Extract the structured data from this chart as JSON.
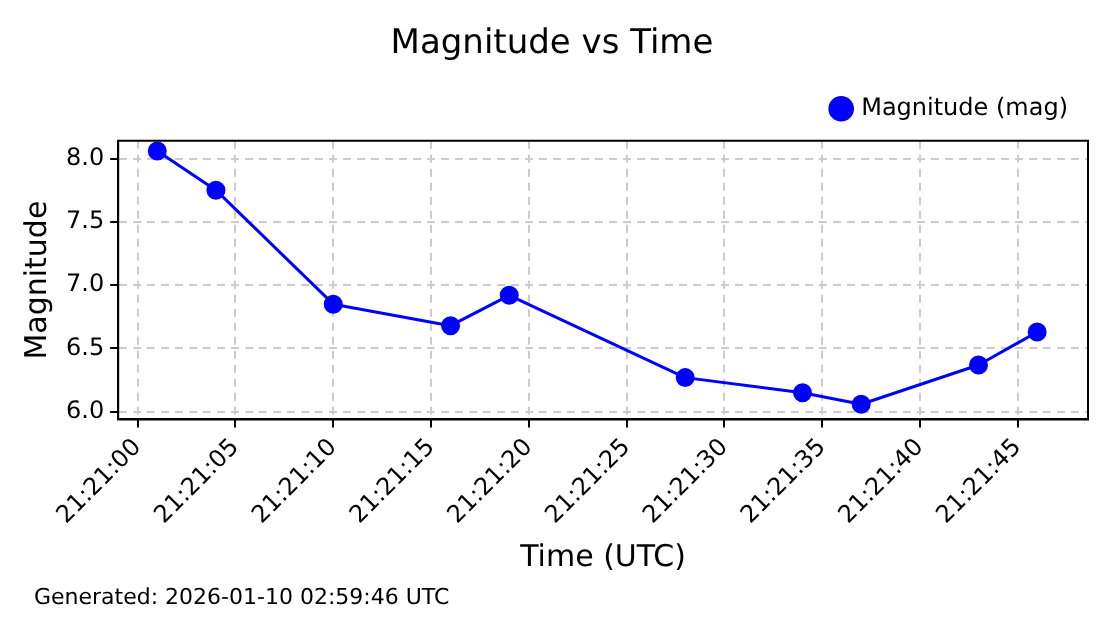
{
  "chart_data": {
    "type": "line",
    "title": "Magnitude vs Time",
    "xlabel": "Time (UTC)",
    "ylabel": "Magnitude",
    "x": [
      21.3502778,
      21.3511111,
      21.3527778,
      21.3544444,
      21.3552778,
      21.3577778,
      21.3594444,
      21.3602778,
      21.3619444,
      21.3627778
    ],
    "series": [
      {
        "name": "Magnitude (mag)",
        "color": "#0000ff",
        "values": [
          8.06,
          7.75,
          6.85,
          6.68,
          6.92,
          6.27,
          6.15,
          6.06,
          6.37,
          6.63
        ]
      }
    ],
    "xlim": [
      21.3497222,
      21.3635
    ],
    "xticks": [
      {
        "value": 21.35,
        "label": "21:21:00"
      },
      {
        "value": 21.3513889,
        "label": "21:21:05"
      },
      {
        "value": 21.3527778,
        "label": "21:21:10"
      },
      {
        "value": 21.3541667,
        "label": "21:21:15"
      },
      {
        "value": 21.3555556,
        "label": "21:21:20"
      },
      {
        "value": 21.3569444,
        "label": "21:21:25"
      },
      {
        "value": 21.3583333,
        "label": "21:21:30"
      },
      {
        "value": 21.3597222,
        "label": "21:21:35"
      },
      {
        "value": 21.3611111,
        "label": "21:21:40"
      },
      {
        "value": 21.3625,
        "label": "21:21:45"
      }
    ],
    "ylim": [
      5.94,
      8.14
    ],
    "yticks": [
      {
        "value": 6,
        "label": "6.0"
      },
      {
        "value": 6.5,
        "label": "6.5"
      },
      {
        "value": 7,
        "label": "7.0"
      },
      {
        "value": 7.5,
        "label": "7.5"
      },
      {
        "value": 8,
        "label": "8.0"
      }
    ],
    "grid": true,
    "legend": "top right",
    "marker": "circle",
    "line_style": "solid",
    "annotations": [
      "Generated: 2026-01-10 02:59:46 UTC"
    ]
  }
}
